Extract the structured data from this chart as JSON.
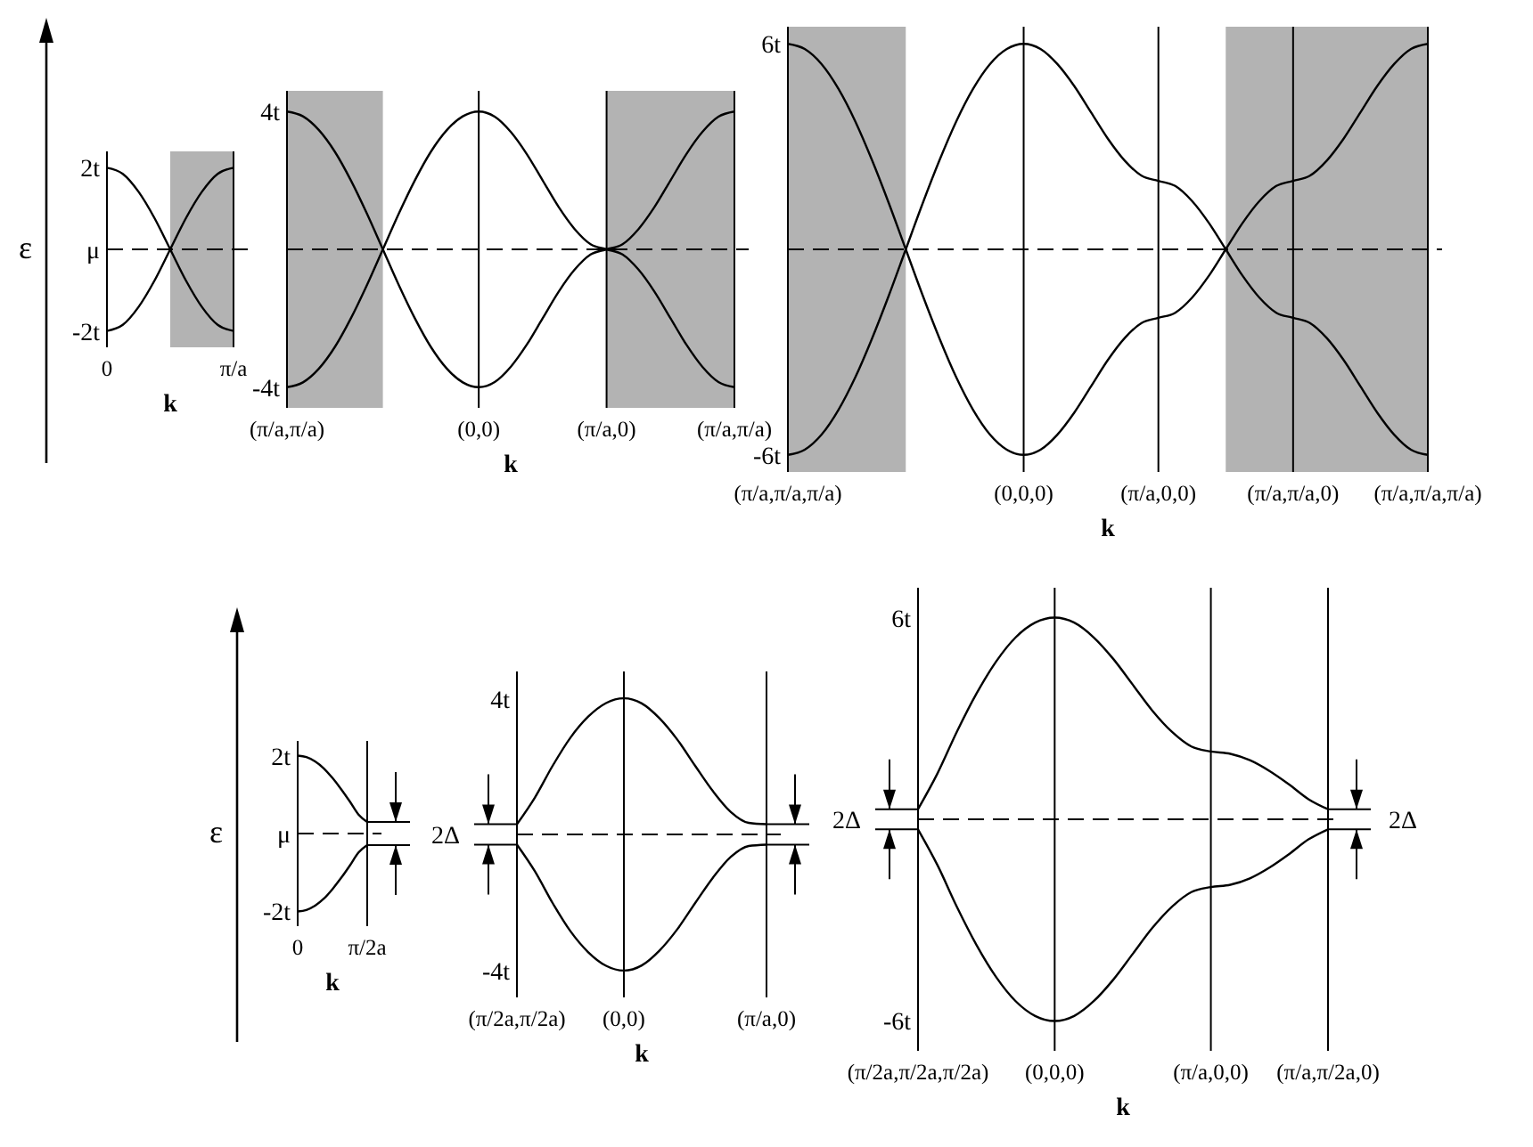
{
  "chart_data": [
    {
      "type": "line",
      "ylabel": "ε",
      "xlabel": "k",
      "ylim": [
        -2.4,
        2.4
      ],
      "categories": [
        "0",
        null,
        null,
        null,
        null,
        null,
        null,
        null,
        "π/a"
      ],
      "yticks": [
        {
          "value": 2,
          "label": "2t"
        },
        {
          "value": 0,
          "label": "μ"
        },
        {
          "value": -2,
          "label": "-2t"
        }
      ],
      "ref_lines": [
        {
          "axis": "y",
          "value": 0,
          "line_style": "dashed",
          "color": "#000000"
        }
      ],
      "series": [
        {
          "color": "#000000",
          "values": [
            2,
            1.85,
            1.41,
            0.77,
            0,
            -0.77,
            -1.41,
            -1.85,
            -2
          ]
        },
        {
          "color": "#000000",
          "values": [
            -2,
            -1.85,
            -1.41,
            -0.77,
            0,
            0.77,
            1.41,
            1.85,
            2
          ]
        }
      ]
    },
    {
      "type": "line",
      "xlabel": "k",
      "ylim": [
        -4.6,
        4.6
      ],
      "categories": [
        "(π/a,π/a)",
        null,
        null,
        null,
        null,
        null,
        null,
        null,
        null,
        null,
        null,
        null,
        "(0,0)",
        null,
        null,
        null,
        null,
        null,
        null,
        null,
        "(π/a,0)",
        null,
        null,
        null,
        null,
        null,
        null,
        null,
        "(π/a,π/a)"
      ],
      "yticks": [
        {
          "value": 4,
          "label": "4t"
        },
        {
          "value": -4,
          "label": "-4t"
        }
      ],
      "grid": "x",
      "ref_lines": [
        {
          "axis": "y",
          "value": 0,
          "line_style": "dashed",
          "color": "#000000"
        }
      ],
      "series": [
        {
          "color": "#000000",
          "values": [
            -4,
            -3.86,
            -3.46,
            -2.83,
            -2,
            -1.04,
            0,
            1.04,
            2,
            2.83,
            3.46,
            3.86,
            4,
            3.85,
            3.41,
            2.77,
            2,
            1.23,
            0.59,
            0.15,
            0,
            -0.15,
            -0.59,
            -1.23,
            -2,
            -2.77,
            -3.41,
            -3.85,
            -4
          ]
        },
        {
          "color": "#000000",
          "values": [
            4,
            3.86,
            3.46,
            2.83,
            2,
            1.04,
            0,
            -1.04,
            -2,
            -2.83,
            -3.46,
            -3.86,
            -4,
            -3.85,
            -3.41,
            -2.77,
            -2,
            -1.23,
            -0.59,
            -0.15,
            0,
            0.15,
            0.59,
            1.23,
            2,
            2.77,
            3.41,
            3.85,
            4
          ]
        }
      ]
    },
    {
      "type": "line",
      "xlabel": "k",
      "ylim": [
        -6.5,
        6.5
      ],
      "categories": [
        "(π/a,π/a,π/a)",
        null,
        null,
        null,
        null,
        null,
        null,
        null,
        null,
        null,
        null,
        null,
        null,
        null,
        "(0,0,0)",
        null,
        null,
        null,
        null,
        null,
        null,
        null,
        "(π/a,0,0)",
        null,
        null,
        null,
        null,
        null,
        null,
        null,
        "(π/a,π/a,0)",
        null,
        null,
        null,
        null,
        null,
        null,
        null,
        "(π/a,π/a,π/a)"
      ],
      "yticks": [
        {
          "value": 6,
          "label": "6t"
        },
        {
          "value": -6,
          "label": "-6t"
        }
      ],
      "grid": "x",
      "ref_lines": [
        {
          "axis": "y",
          "value": 0,
          "line_style": "dashed",
          "color": "#000000"
        }
      ],
      "series": [
        {
          "color": "#000000",
          "values": [
            -6,
            -5.85,
            -5.41,
            -4.69,
            -3.74,
            -2.6,
            -1.34,
            0,
            1.34,
            2.6,
            3.74,
            4.69,
            5.41,
            5.85,
            6,
            5.85,
            5.41,
            4.77,
            4,
            3.23,
            2.59,
            2.15,
            2,
            1.85,
            1.41,
            0.77,
            0,
            -0.77,
            -1.41,
            -1.85,
            -2,
            -2.15,
            -2.59,
            -3.23,
            -4,
            -4.77,
            -5.41,
            -5.85,
            -6
          ]
        },
        {
          "color": "#000000",
          "values": [
            6,
            5.85,
            5.41,
            4.69,
            3.74,
            2.6,
            1.34,
            0,
            -1.34,
            -2.6,
            -3.74,
            -4.69,
            -5.41,
            -5.85,
            -6,
            -5.85,
            -5.41,
            -4.77,
            -4,
            -3.23,
            -2.59,
            -2.15,
            -2,
            -1.85,
            -1.41,
            -0.77,
            0,
            0.77,
            1.41,
            1.85,
            2,
            2.15,
            2.59,
            3.23,
            4,
            4.77,
            5.41,
            5.85,
            6
          ]
        }
      ]
    },
    {
      "type": "line",
      "ylabel": "ε",
      "xlabel": "k",
      "ylim": [
        -2.4,
        2.4
      ],
      "categories": [
        "0",
        null,
        null,
        null,
        null,
        null,
        null,
        null,
        "π/2a"
      ],
      "yticks": [
        {
          "value": 2,
          "label": "2t"
        },
        {
          "value": 0,
          "label": "μ"
        },
        {
          "value": -2,
          "label": "-2t"
        }
      ],
      "ref_lines": [
        {
          "axis": "y",
          "value": 0,
          "line_style": "dashed",
          "color": "#000000"
        }
      ],
      "series": [
        {
          "color": "#000000",
          "values": [
            2.02,
            1.98,
            1.87,
            1.69,
            1.44,
            1.15,
            0.83,
            0.49,
            0.3
          ]
        },
        {
          "color": "#000000",
          "values": [
            -2.02,
            -1.98,
            -1.87,
            -1.69,
            -1.44,
            -1.15,
            -0.83,
            -0.49,
            -0.3
          ]
        }
      ]
    },
    {
      "type": "line",
      "xlabel": "k",
      "ylim": [
        -4.8,
        4.8
      ],
      "categories": [
        "(π/2a,π/2a)",
        null,
        null,
        null,
        null,
        null,
        "(0,0)",
        null,
        null,
        null,
        null,
        null,
        null,
        null,
        "(π/a,0)"
      ],
      "yticks": [
        {
          "value": 4,
          "label": "4t"
        },
        {
          "value": -4,
          "label": "-4t"
        }
      ],
      "grid": "x",
      "ref_lines": [
        {
          "axis": "y",
          "value": 0,
          "line_style": "dashed",
          "color": "#000000"
        }
      ],
      "annotations": [
        {
          "text": "2Δ",
          "x": "(π/2a,π/2a)",
          "y": 0
        }
      ],
      "series": [
        {
          "color": "#000000",
          "values": [
            0.3,
            1.08,
            2.02,
            2.85,
            3.47,
            3.87,
            4.01,
            3.86,
            3.42,
            2.79,
            2.02,
            1.27,
            0.66,
            0.34,
            0.3
          ]
        },
        {
          "color": "#000000",
          "values": [
            -0.3,
            -1.08,
            -2.02,
            -2.85,
            -3.47,
            -3.87,
            -4.01,
            -3.86,
            -3.42,
            -2.79,
            -2.02,
            -1.27,
            -0.66,
            -0.34,
            -0.3
          ]
        }
      ]
    },
    {
      "type": "line",
      "xlabel": "k",
      "ylim": [
        -6.9,
        6.9
      ],
      "categories": [
        "(π/2a,π/2a,π/2a)",
        null,
        null,
        null,
        null,
        null,
        null,
        "(0,0,0)",
        null,
        null,
        null,
        null,
        null,
        null,
        null,
        "(π/a,0,0)",
        null,
        null,
        null,
        null,
        null,
        "(π/a,π/2a,0)"
      ],
      "yticks": [
        {
          "value": 6,
          "label": "6t"
        },
        {
          "value": -6,
          "label": "-6t"
        }
      ],
      "grid": "x",
      "ref_lines": [
        {
          "axis": "y",
          "value": 0,
          "line_style": "dashed",
          "color": "#000000"
        }
      ],
      "annotations": [
        {
          "text": "2Δ",
          "x": "(π/2a,π/2a,π/2a)",
          "y": 0
        },
        {
          "text": "2Δ",
          "x": "(π/a,π/2a,0)",
          "y": 0
        }
      ],
      "series": [
        {
          "color": "#000000",
          "values": [
            0.3,
            1.37,
            2.62,
            3.75,
            4.7,
            5.42,
            5.86,
            6.01,
            5.86,
            5.42,
            4.78,
            4.01,
            3.24,
            2.61,
            2.17,
            2.02,
            1.95,
            1.76,
            1.44,
            1.04,
            0.6,
            0.3
          ]
        },
        {
          "color": "#000000",
          "values": [
            -0.3,
            -1.37,
            -2.62,
            -3.75,
            -4.7,
            -5.42,
            -5.86,
            -6.01,
            -5.86,
            -5.42,
            -4.78,
            -4.01,
            -3.24,
            -2.61,
            -2.17,
            -2.02,
            -1.95,
            -1.76,
            -1.44,
            -1.04,
            -0.6,
            -0.3
          ]
        }
      ]
    }
  ]
}
